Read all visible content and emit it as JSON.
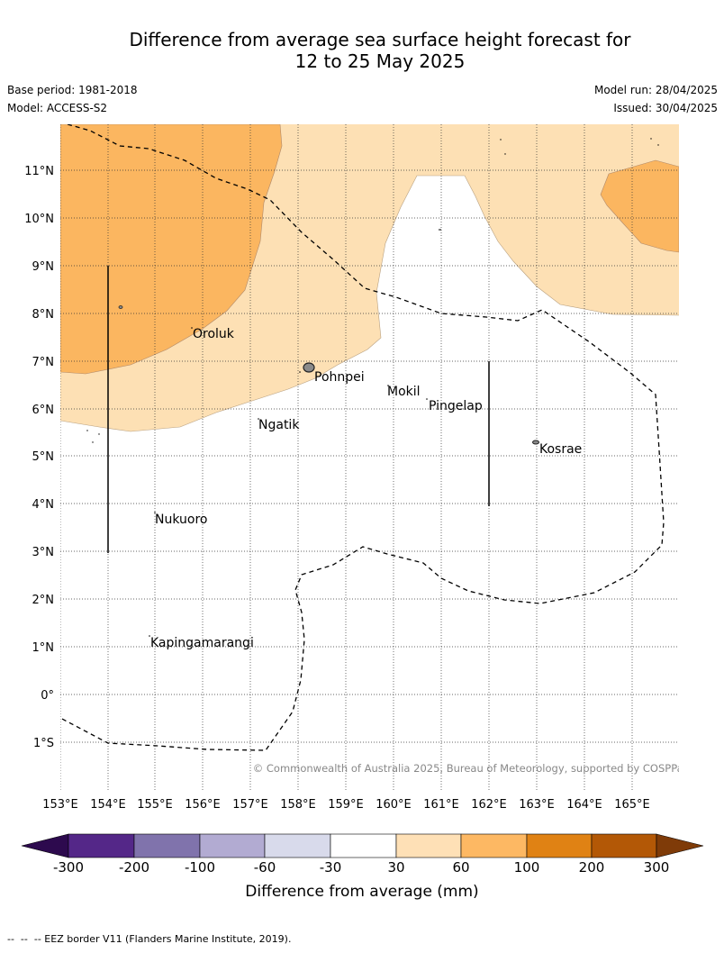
{
  "title": {
    "line1": "Difference from average sea surface height forecast for",
    "line2": "12 to 25 May 2025"
  },
  "meta": {
    "base_period": "Base period: 1981-2018",
    "model": "Model: ACCESS-S2",
    "model_run": "Model run: 28/04/2025",
    "issued": "Issued: 30/04/2025"
  },
  "map": {
    "lat_labels": [
      "11°N",
      "10°N",
      "9°N",
      "8°N",
      "7°N",
      "6°N",
      "5°N",
      "4°N",
      "3°N",
      "2°N",
      "1°N",
      "0°",
      "1°S"
    ],
    "lon_labels": [
      "153°E",
      "154°E",
      "155°E",
      "156°E",
      "157°E",
      "158°E",
      "159°E",
      "160°E",
      "161°E",
      "162°E",
      "163°E",
      "164°E",
      "165°E"
    ],
    "places": [
      {
        "name": "Oroluk"
      },
      {
        "name": "Pohnpei"
      },
      {
        "name": "Mokil"
      },
      {
        "name": "Pingelap"
      },
      {
        "name": "Ngatik"
      },
      {
        "name": "Kosrae"
      },
      {
        "name": "Nukuoro"
      },
      {
        "name": "Kapingamarangi"
      }
    ],
    "copyright": "© Commonwealth of Australia 2025, Bureau of Meteorology, supported by COSPPac",
    "colors": {
      "band_30_60": "#fde0b4",
      "band_60_100": "#fbb660",
      "neutral": "#ffffff"
    }
  },
  "colorbar": {
    "labels": [
      "-300",
      "-200",
      "-100",
      "-60",
      "-30",
      "30",
      "60",
      "100",
      "200",
      "300"
    ],
    "colors": [
      "#2d0a4e",
      "#542788",
      "#8073ac",
      "#b2abd2",
      "#d8daeb",
      "#ffffff",
      "#fee0b6",
      "#fdb863",
      "#e08214",
      "#b35806",
      "#7f3b08"
    ],
    "title": "Difference from average (mm)"
  },
  "footer": "--  --  -- EEZ border V11 (Flanders Marine Institute, 2019)."
}
